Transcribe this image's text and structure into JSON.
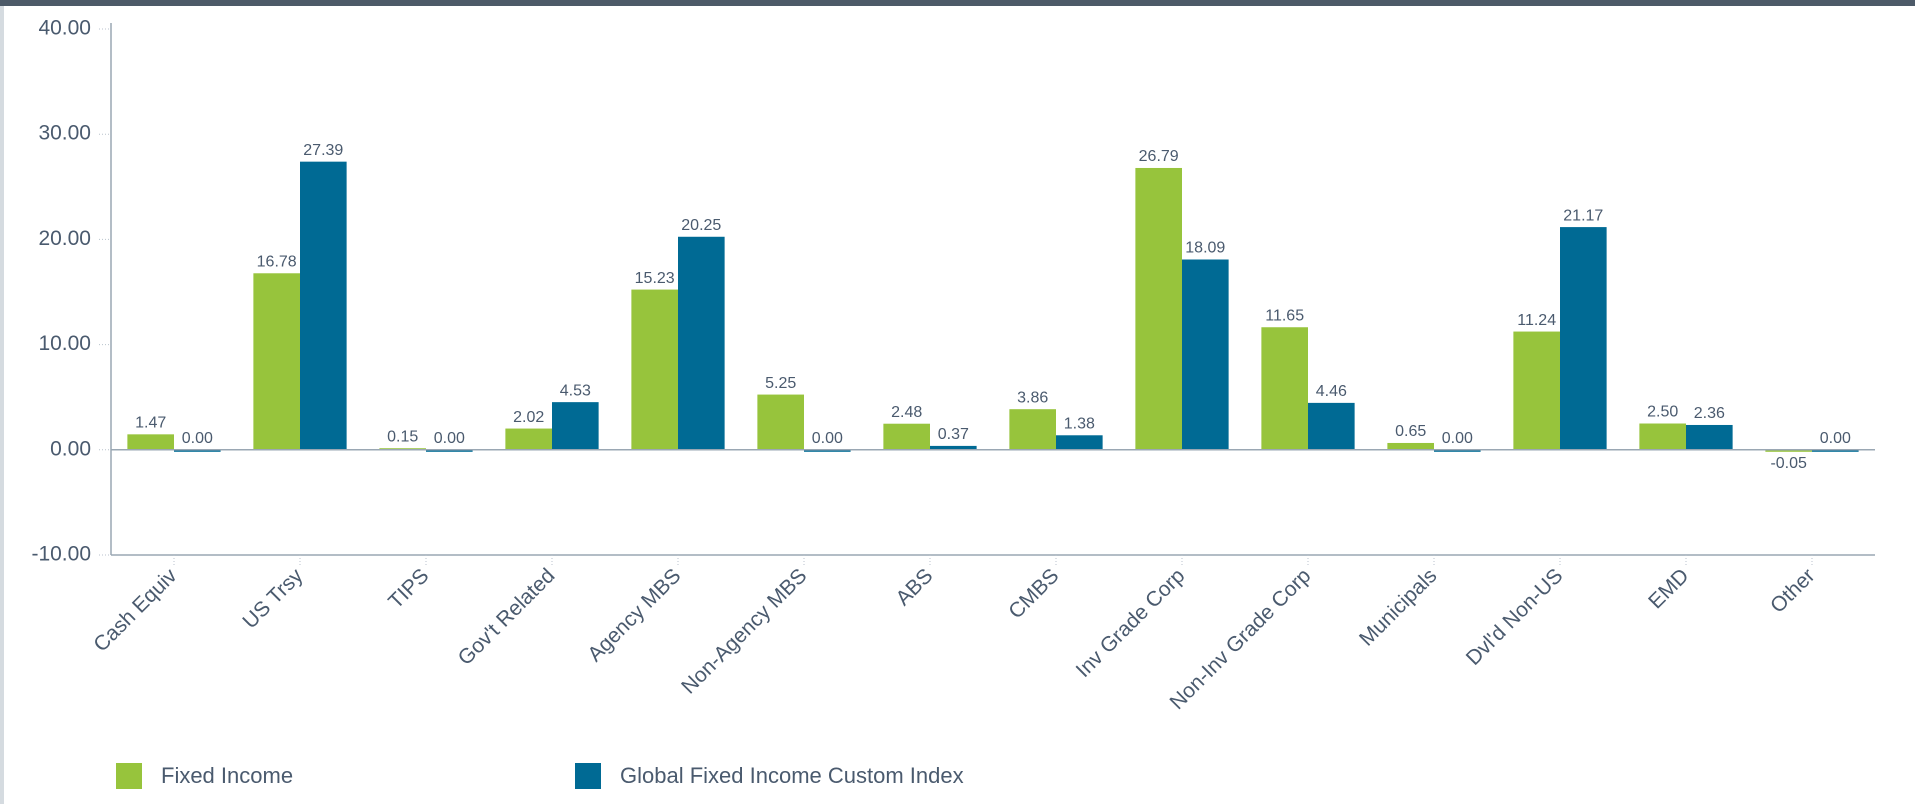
{
  "chart_data": {
    "type": "bar",
    "categories": [
      "Cash Equiv",
      "US Trsy",
      "TIPS",
      "Gov't Related",
      "Agency MBS",
      "Non-Agency MBS",
      "ABS",
      "CMBS",
      "Inv Grade Corp",
      "Non-Inv Grade Corp",
      "Municipals",
      "Dvl'd Non-US",
      "EMD",
      "Other"
    ],
    "series": [
      {
        "name": "Fixed Income",
        "color": "#97c43c",
        "values": [
          1.47,
          16.78,
          0.15,
          2.02,
          15.23,
          5.25,
          2.48,
          3.86,
          26.79,
          11.65,
          0.65,
          11.24,
          2.5,
          -0.05
        ],
        "value_labels": [
          "1.47",
          "16.78",
          "0.15",
          "2.02",
          "15.23",
          "5.25",
          "2.48",
          "3.86",
          "26.79",
          "11.65",
          "0.65",
          "11.24",
          "2.50",
          "-0.05"
        ]
      },
      {
        "name": "Global Fixed Income Custom Index",
        "color": "#006a94",
        "values": [
          0,
          27.39,
          0,
          4.53,
          20.25,
          0,
          0.37,
          1.38,
          18.09,
          4.46,
          0,
          21.17,
          2.36,
          0
        ],
        "value_labels": [
          "0.00",
          "27.39",
          "0.00",
          "4.53",
          "20.25",
          "0.00",
          "0.37",
          "1.38",
          "18.09",
          "4.46",
          "0.00",
          "21.17",
          "2.36",
          "0.00"
        ]
      }
    ],
    "ylim": [
      -10,
      40
    ],
    "yticks": [
      {
        "value": -10,
        "label": "-10.00"
      },
      {
        "value": 0,
        "label": "0.00"
      },
      {
        "value": 10,
        "label": "10.00"
      },
      {
        "value": 20,
        "label": "20.00"
      },
      {
        "value": 30,
        "label": "30.00"
      },
      {
        "value": 40,
        "label": "40.00"
      }
    ],
    "legend": "bottom-left"
  }
}
